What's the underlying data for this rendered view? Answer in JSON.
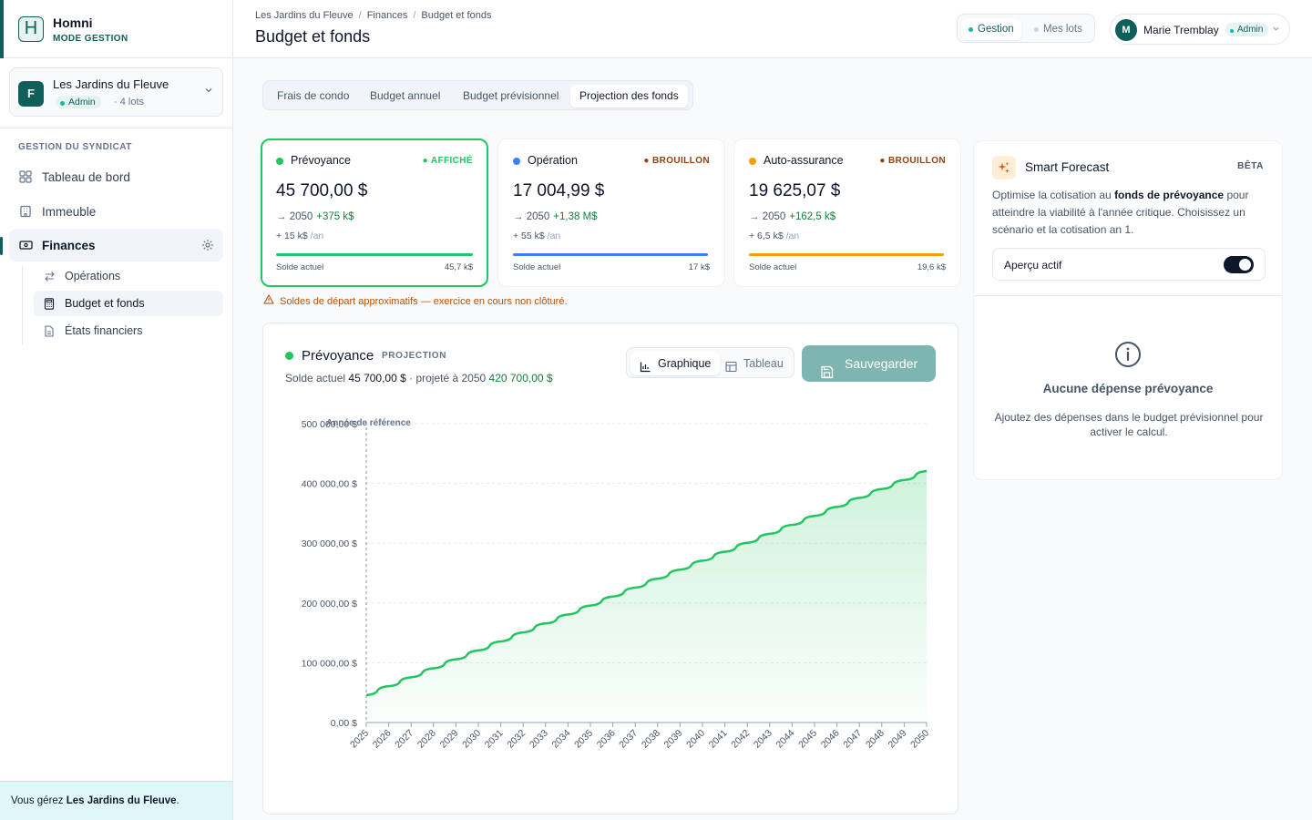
{
  "brand": {
    "name": "Homni",
    "mode": "MODE GESTION",
    "logo_letter": "H"
  },
  "syndicate": {
    "avatar": "F",
    "name": "Les Jardins du Fleuve",
    "role": "Admin",
    "lots": "· 4 lots"
  },
  "sidebar": {
    "section_title": "GESTION DU SYNDICAT",
    "items": [
      {
        "label": "Tableau de bord",
        "icon": "dashboard-icon"
      },
      {
        "label": "Immeuble",
        "icon": "building-icon"
      },
      {
        "label": "Finances",
        "icon": "banknote-icon"
      }
    ],
    "sub_items": [
      {
        "label": "Opérations",
        "icon": "arrows-icon"
      },
      {
        "label": "Budget et fonds",
        "icon": "calculator-icon"
      },
      {
        "label": "États financiers",
        "icon": "file-icon"
      }
    ],
    "footer_prefix": "Vous gérez ",
    "footer_name": "Les Jardins du Fleuve",
    "footer_suffix": "."
  },
  "header": {
    "breadcrumbs": [
      "Les Jardins du Fleuve",
      "Finances",
      "Budget et fonds"
    ],
    "title": "Budget et fonds",
    "mode_options": [
      "Gestion",
      "Mes lots"
    ],
    "user_initial": "M",
    "user_name": "Marie Tremblay",
    "user_role": "Admin"
  },
  "tabs": [
    "Frais de condo",
    "Budget annuel",
    "Budget prévisionnel",
    "Projection des fonds"
  ],
  "funds": [
    {
      "name": "Prévoyance",
      "status": "AFFICHÉ",
      "amount": "45 700,00 $",
      "proj_year": "→ 2050",
      "proj_delta": "+375 k$",
      "contrib": "+ 15 k$",
      "contrib_unit": "/an",
      "balance_label": "Solde actuel",
      "balance_value": "45,7 k$",
      "color": "#22c55e",
      "status_color": "#22c55e"
    },
    {
      "name": "Opération",
      "status": "BROUILLON",
      "amount": "17 004,99 $",
      "proj_year": "→ 2050",
      "proj_delta": "+1,38 M$",
      "contrib": "+ 55 k$",
      "contrib_unit": "/an",
      "balance_label": "Solde actuel",
      "balance_value": "17 k$",
      "color": "#3b82f6",
      "status_color": "#92400e"
    },
    {
      "name": "Auto-assurance",
      "status": "BROUILLON",
      "amount": "19 625,07 $",
      "proj_year": "→ 2050",
      "proj_delta": "+162,5 k$",
      "contrib": "+ 6,5 k$",
      "contrib_unit": "/an",
      "balance_label": "Solde actuel",
      "balance_value": "19,6 k$",
      "color": "#f59e0b",
      "status_color": "#92400e"
    }
  ],
  "warning": "Soldes de départ approximatifs — exercice en cours non clôturé.",
  "panel": {
    "title": "Prévoyance",
    "tag": "PROJECTION",
    "sub_label1": "Solde actuel ",
    "sub_value1": "45 700,00 $",
    "sub_label2": " · projeté à 2050 ",
    "sub_value2": "420 700,00 $",
    "view_graph": "Graphique",
    "view_table": "Tableau",
    "save": "Sauvegarder"
  },
  "chart_data": {
    "type": "area",
    "title": "",
    "xlabel": "",
    "ylabel": "",
    "annotation": "Année de référence",
    "reference_year": "2025",
    "color": "#22c55e",
    "ylim": [
      0,
      500000
    ],
    "y_ticks": [
      0,
      100000,
      200000,
      300000,
      400000,
      500000
    ],
    "y_tick_labels": [
      "0,00 $",
      "100 000,00 $",
      "200 000,00 $",
      "300 000,00 $",
      "400 000,00 $",
      "500 000,00 $"
    ],
    "x": [
      "2025",
      "2026",
      "2027",
      "2028",
      "2029",
      "2030",
      "2031",
      "2032",
      "2033",
      "2034",
      "2035",
      "2036",
      "2037",
      "2038",
      "2039",
      "2040",
      "2041",
      "2042",
      "2043",
      "2044",
      "2045",
      "2046",
      "2047",
      "2048",
      "2049",
      "2050"
    ],
    "values": [
      45700,
      60700,
      75700,
      90700,
      105700,
      120700,
      135700,
      150700,
      165700,
      180700,
      195700,
      210700,
      225700,
      240700,
      255700,
      270700,
      285700,
      300700,
      315700,
      330700,
      345700,
      360700,
      375700,
      390700,
      405700,
      420700
    ]
  },
  "smart_forecast": {
    "title": "Smart Forecast",
    "badge": "BÊTA",
    "desc_before": "Optimise la cotisation au ",
    "desc_bold": "fonds de prévoyance",
    "desc_after": " pour atteindre la viabilité à l'année critique. Choisissez un scénario et la cotisation an 1.",
    "toggle_label": "Aperçu actif",
    "toggle_on": true,
    "empty_title": "Aucune dépense prévoyance",
    "empty_desc": "Ajoutez des dépenses dans le budget prévisionnel pour activer le calcul."
  }
}
